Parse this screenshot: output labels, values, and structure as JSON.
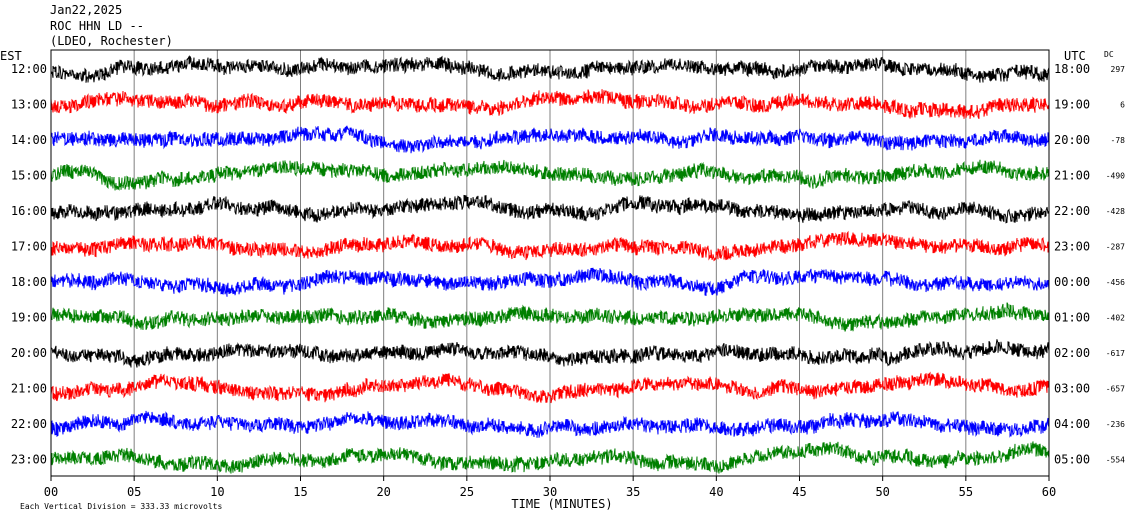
{
  "header": {
    "date": "Jan22,2025",
    "station": "ROC HHN LD --",
    "network": "(LDEO, Rochester)"
  },
  "chart_data": {
    "type": "helicorder",
    "left_axis_label": "EST",
    "right_axis_label": "UTC",
    "dc_label": "DC",
    "x_axis_label": "TIME (MINUTES)",
    "x_ticks": [
      "00",
      "05",
      "10",
      "15",
      "20",
      "25",
      "30",
      "35",
      "40",
      "45",
      "50",
      "55",
      "60"
    ],
    "xlim": [
      0,
      60
    ],
    "scale_note": "Each Vertical Division = 333.33 microvolts",
    "colors": [
      "#000000",
      "#ff0000",
      "#0000ff",
      "#008000"
    ],
    "rows": [
      {
        "est": "12:00",
        "utc": "18:00",
        "dc": "297"
      },
      {
        "est": "13:00",
        "utc": "19:00",
        "dc": "6"
      },
      {
        "est": "14:00",
        "utc": "20:00",
        "dc": "-78"
      },
      {
        "est": "15:00",
        "utc": "21:00",
        "dc": "-490"
      },
      {
        "est": "16:00",
        "utc": "22:00",
        "dc": "-428"
      },
      {
        "est": "17:00",
        "utc": "23:00",
        "dc": "-287"
      },
      {
        "est": "18:00",
        "utc": "00:00",
        "dc": "-456"
      },
      {
        "est": "19:00",
        "utc": "01:00",
        "dc": "-402"
      },
      {
        "est": "20:00",
        "utc": "02:00",
        "dc": "-617"
      },
      {
        "est": "21:00",
        "utc": "03:00",
        "dc": "-657"
      },
      {
        "est": "22:00",
        "utc": "04:00",
        "dc": "-236"
      },
      {
        "est": "23:00",
        "utc": "05:00",
        "dc": "-554"
      }
    ]
  }
}
